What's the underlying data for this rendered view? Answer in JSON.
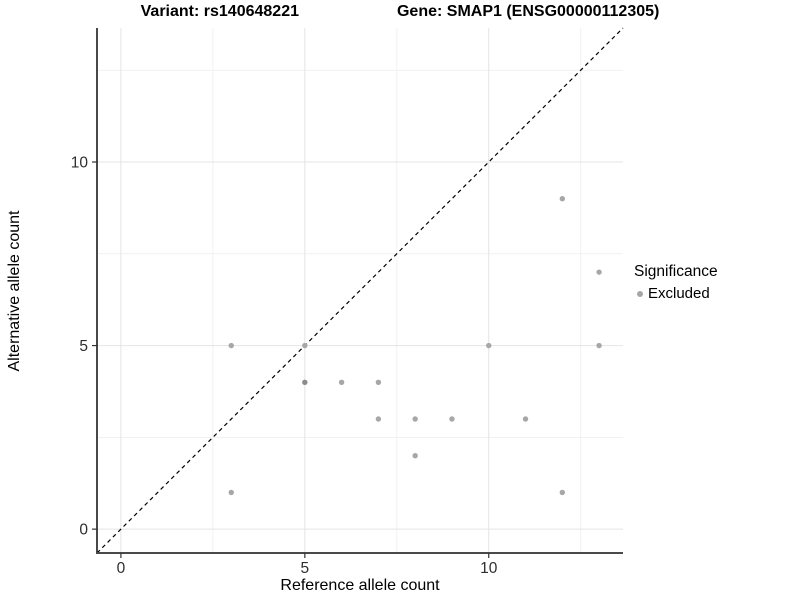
{
  "chart_data": {
    "type": "scatter",
    "title_left": "Variant: rs140648221",
    "title_right": "Gene: SMAP1 (ENSG00000112305)",
    "xlabel": "Reference allele count",
    "ylabel": "Alternative allele count",
    "xlim": [
      -0.65,
      13.65
    ],
    "ylim": [
      -0.65,
      13.65
    ],
    "x_major_ticks": [
      0,
      5,
      10
    ],
    "x_minor_ticks": [
      2.5,
      7.5,
      12.5
    ],
    "y_major_ticks": [
      0,
      5,
      10
    ],
    "y_minor_ticks": [
      2.5,
      7.5,
      12.5
    ],
    "grid": "major+minor",
    "identity_line": {
      "equation": "y = x",
      "style": "dashed",
      "color": "#000000"
    },
    "legend": {
      "title": "Significance",
      "position": "right",
      "items": [
        {
          "label": "Excluded",
          "color": "#A7A7A7"
        }
      ]
    },
    "series": [
      {
        "name": "Excluded",
        "color": "#A7A7A7",
        "points": [
          {
            "x": 3,
            "y": 1
          },
          {
            "x": 3,
            "y": 5
          },
          {
            "x": 5,
            "y": 4,
            "color": "#8C8C8C"
          },
          {
            "x": 5,
            "y": 5
          },
          {
            "x": 6,
            "y": 4
          },
          {
            "x": 7,
            "y": 3
          },
          {
            "x": 7,
            "y": 4
          },
          {
            "x": 8,
            "y": 2
          },
          {
            "x": 8,
            "y": 3
          },
          {
            "x": 9,
            "y": 3
          },
          {
            "x": 10,
            "y": 5
          },
          {
            "x": 11,
            "y": 3
          },
          {
            "x": 12,
            "y": 1
          },
          {
            "x": 12,
            "y": 9
          },
          {
            "x": 13,
            "y": 5
          },
          {
            "x": 13,
            "y": 7
          }
        ]
      }
    ],
    "colors": {
      "grid_major": "#E4E4E4",
      "grid_minor": "#F1F1F1",
      "axis_line_left": "#1A1A1A",
      "axis_line_bottom": "#4A4A4A",
      "tick_mark": "#333333",
      "tick_label": "#2E2E2E"
    }
  }
}
